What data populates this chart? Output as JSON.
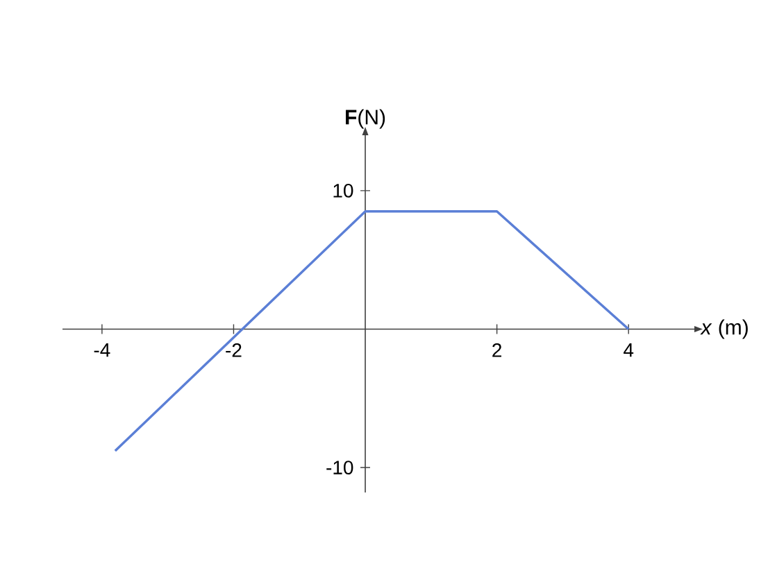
{
  "chart_data": {
    "type": "line",
    "xlabel": "*x* (m)",
    "ylabel": "**F**(N)",
    "x": [
      -3.8,
      0,
      2,
      4
    ],
    "values": [
      -8.8,
      8.5,
      8.5,
      0
    ],
    "color": "#5b7fd6",
    "xlim": [
      -4.6,
      5.0
    ],
    "ylim": [
      -11.8,
      14
    ],
    "xticks": [
      -4,
      -2,
      2,
      4
    ],
    "yticks": [
      -10,
      10
    ]
  }
}
